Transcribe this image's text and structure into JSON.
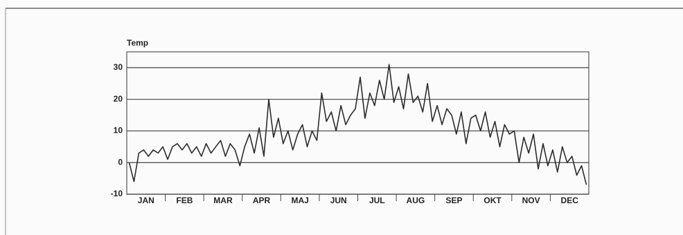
{
  "chart_data": {
    "type": "line",
    "y_label": "Temp",
    "categories": [
      null,
      null,
      null,
      null,
      "JAN",
      null,
      null,
      null,
      null,
      null,
      null,
      null,
      "FEB",
      null,
      null,
      null,
      null,
      null,
      null,
      null,
      "MAR",
      null,
      null,
      null,
      null,
      null,
      null,
      null,
      "APR",
      null,
      null,
      null,
      null,
      null,
      null,
      null,
      "MAJ",
      null,
      null,
      null,
      null,
      null,
      null,
      null,
      "JUN",
      null,
      null,
      null,
      null,
      null,
      null,
      null,
      "JUL",
      null,
      null,
      null,
      null,
      null,
      null,
      null,
      "AUG",
      null,
      null,
      null,
      null,
      null,
      null,
      null,
      "SEP",
      null,
      null,
      null,
      null,
      null,
      null,
      null,
      "OKT",
      null,
      null,
      null,
      null,
      null,
      null,
      null,
      "NOV",
      null,
      null,
      null,
      null,
      null,
      null,
      null,
      "DEC",
      null,
      null,
      null
    ],
    "series": [
      {
        "name": null,
        "color": "#2b2b2b",
        "values": [
          0,
          -6,
          3,
          4,
          2,
          4,
          3,
          5,
          1,
          5,
          6,
          4,
          6,
          3,
          5,
          2,
          6,
          3,
          5,
          7,
          2,
          6,
          4,
          -1,
          5,
          9,
          3,
          11,
          2,
          20,
          8,
          14,
          6,
          10,
          4,
          9,
          12,
          5,
          10,
          7,
          22,
          13,
          16,
          10,
          18,
          12,
          15,
          17,
          27,
          14,
          22,
          18,
          26,
          20,
          31,
          19,
          24,
          17,
          28,
          19,
          21,
          16,
          25,
          13,
          18,
          12,
          17,
          15,
          9,
          16,
          6,
          14,
          15,
          10,
          16,
          8,
          13,
          5,
          12,
          9,
          10,
          0,
          8,
          3,
          9,
          -2,
          6,
          -1,
          4,
          -3,
          5,
          0,
          2,
          -4,
          -1,
          -7
        ]
      }
    ],
    "ylim": [
      -10,
      35
    ],
    "yticks": [
      -10,
      0,
      10,
      20,
      30
    ],
    "grid": true
  }
}
